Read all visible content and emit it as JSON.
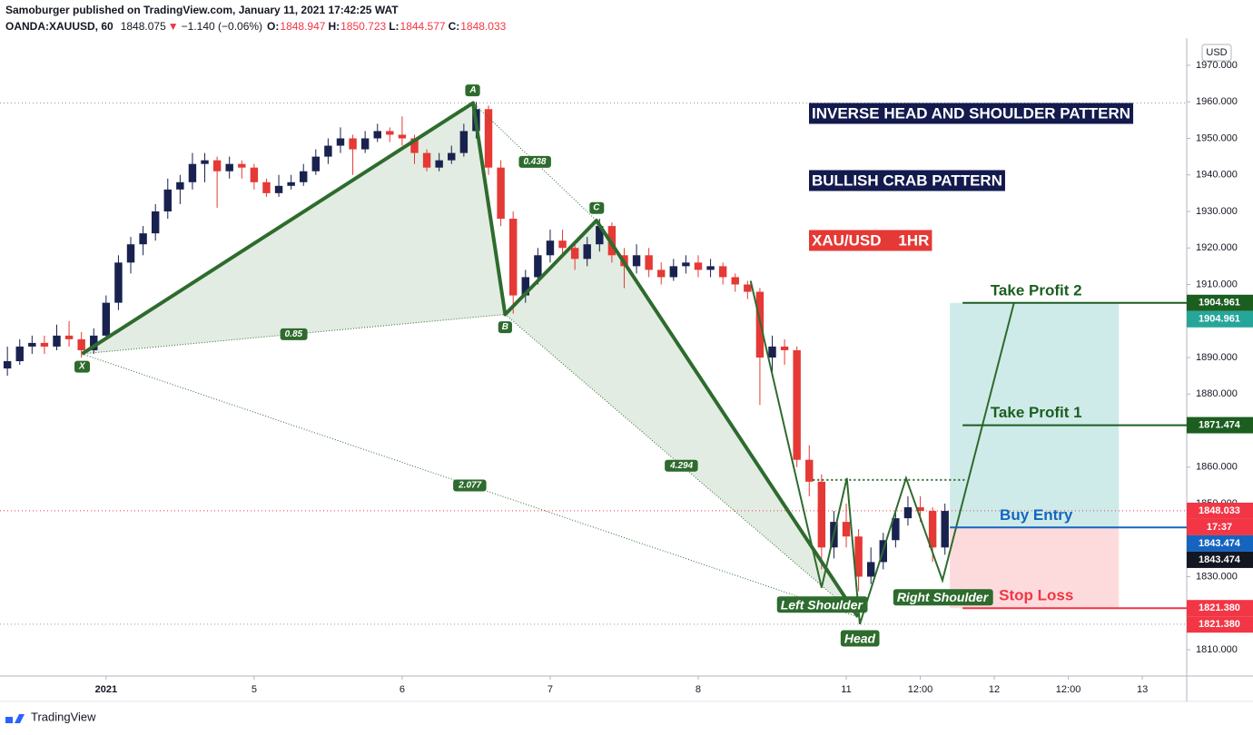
{
  "chart_data": {
    "type": "candlestick",
    "header": {
      "byline": "Samoburger published on TradingView.com, January 11, 2021 17:42:25 WAT",
      "symbol": "OANDA:XAUUSD, 60",
      "last": "1848.075",
      "arrow": "▼",
      "change": "−1.140 (−0.06%)",
      "ohlc": [
        {
          "key": "O:",
          "value": "1848.947"
        },
        {
          "key": "H:",
          "value": "1850.723"
        },
        {
          "key": "L:",
          "value": "1844.577"
        },
        {
          "key": "C:",
          "value": "1848.033"
        }
      ]
    },
    "currency": "USD",
    "up_color": "#19224f",
    "down_color": "#e53935",
    "xlim": [
      -17.2,
      175.2
    ],
    "xticks": [
      {
        "value": 0,
        "label": "2021"
      },
      {
        "value": 24,
        "label": "5"
      },
      {
        "value": 48,
        "label": "6"
      },
      {
        "value": 72,
        "label": "7"
      },
      {
        "value": 96,
        "label": "8"
      },
      {
        "value": 120,
        "label": "11"
      },
      {
        "value": 132,
        "label": "12:00"
      },
      {
        "value": 144,
        "label": "12"
      },
      {
        "value": 156,
        "label": "12:00"
      },
      {
        "value": 168,
        "label": "13"
      }
    ],
    "ylim": [
      1802.8,
      1977.45
    ],
    "yticks": [
      {
        "value": 1810,
        "label": "1810.000"
      },
      {
        "value": 1820,
        "label": "1820.000"
      },
      {
        "value": 1830,
        "label": "1830.000"
      },
      {
        "value": 1840,
        "label": "1840.000"
      },
      {
        "value": 1850,
        "label": "1850.000"
      },
      {
        "value": 1860,
        "label": "1860.000"
      },
      {
        "value": 1870,
        "label": "1870.000"
      },
      {
        "value": 1880,
        "label": "1880.000"
      },
      {
        "value": 1890,
        "label": "1890.000"
      },
      {
        "value": 1900,
        "label": "1900.000"
      },
      {
        "value": 1910,
        "label": "1910.000"
      },
      {
        "value": 1920,
        "label": "1920.000"
      },
      {
        "value": 1930,
        "label": "1930.000"
      },
      {
        "value": 1940,
        "label": "1940.000"
      },
      {
        "value": 1950,
        "label": "1950.000"
      },
      {
        "value": 1960,
        "label": "1960.000"
      },
      {
        "value": 1970,
        "label": "1970.000"
      }
    ],
    "x": [
      -16,
      -14,
      -12,
      -10,
      -8,
      -6,
      -4,
      -2,
      0,
      2,
      4,
      6,
      8,
      10,
      12,
      14,
      16,
      18,
      20,
      22,
      24,
      26,
      28,
      30,
      32,
      34,
      36,
      38,
      40,
      42,
      44,
      46,
      48,
      50,
      52,
      54,
      56,
      58,
      60,
      62,
      64,
      66,
      68,
      70,
      72,
      74,
      76,
      78,
      80,
      82,
      84,
      86,
      88,
      90,
      92,
      94,
      96,
      98,
      100,
      102,
      104,
      106,
      108,
      110,
      112,
      114,
      116,
      118,
      120,
      122,
      124,
      126,
      128,
      130,
      132,
      134,
      136
    ],
    "ohlc": [
      [
        1887,
        1893,
        1885,
        1889
      ],
      [
        1889,
        1895,
        1888,
        1893
      ],
      [
        1893,
        1896,
        1891,
        1894
      ],
      [
        1894,
        1896,
        1891,
        1893
      ],
      [
        1893,
        1899,
        1892,
        1896
      ],
      [
        1896,
        1900,
        1893,
        1895
      ],
      [
        1895,
        1897,
        1890,
        1892
      ],
      [
        1892,
        1898,
        1891,
        1896
      ],
      [
        1896,
        1907,
        1895,
        1905
      ],
      [
        1905,
        1918,
        1903,
        1916
      ],
      [
        1916,
        1923,
        1913,
        1921
      ],
      [
        1921,
        1926,
        1918,
        1924
      ],
      [
        1924,
        1932,
        1922,
        1930
      ],
      [
        1930,
        1939,
        1928,
        1936
      ],
      [
        1936,
        1940,
        1932,
        1938
      ],
      [
        1938,
        1946,
        1936,
        1943
      ],
      [
        1943,
        1946,
        1938,
        1944
      ],
      [
        1944,
        1945,
        1931,
        1941
      ],
      [
        1941,
        1945,
        1939,
        1943
      ],
      [
        1943,
        1944,
        1939,
        1942
      ],
      [
        1942,
        1943,
        1936,
        1938
      ],
      [
        1938,
        1939,
        1934,
        1935
      ],
      [
        1935,
        1940,
        1934,
        1937
      ],
      [
        1937,
        1940,
        1936,
        1938
      ],
      [
        1938,
        1943,
        1937,
        1941
      ],
      [
        1941,
        1947,
        1940,
        1945
      ],
      [
        1945,
        1950,
        1943,
        1948
      ],
      [
        1948,
        1953,
        1946,
        1950
      ],
      [
        1950,
        1951,
        1940,
        1947
      ],
      [
        1947,
        1952,
        1946,
        1950
      ],
      [
        1950,
        1954,
        1949,
        1952
      ],
      [
        1952,
        1953,
        1949,
        1951
      ],
      [
        1951,
        1956,
        1948,
        1950
      ],
      [
        1950,
        1951,
        1943,
        1946
      ],
      [
        1946,
        1947,
        1941,
        1942
      ],
      [
        1942,
        1946,
        1941,
        1944
      ],
      [
        1944,
        1948,
        1943,
        1946
      ],
      [
        1946,
        1954,
        1945,
        1952
      ],
      [
        1952,
        1960,
        1950,
        1958
      ],
      [
        1958,
        1959,
        1940,
        1942
      ],
      [
        1942,
        1944,
        1926,
        1928
      ],
      [
        1928,
        1930,
        1902,
        1907
      ],
      [
        1907,
        1914,
        1905,
        1912
      ],
      [
        1912,
        1920,
        1910,
        1918
      ],
      [
        1918,
        1925,
        1916,
        1922
      ],
      [
        1922,
        1925,
        1918,
        1920
      ],
      [
        1920,
        1922,
        1914,
        1917
      ],
      [
        1917,
        1923,
        1915,
        1921
      ],
      [
        1921,
        1928,
        1919,
        1926
      ],
      [
        1926,
        1927,
        1916,
        1918
      ],
      [
        1918,
        1920,
        1909,
        1915
      ],
      [
        1915,
        1921,
        1913,
        1918
      ],
      [
        1918,
        1920,
        1912,
        1914
      ],
      [
        1914,
        1916,
        1910,
        1912
      ],
      [
        1912,
        1917,
        1911,
        1915
      ],
      [
        1915,
        1918,
        1913,
        1916
      ],
      [
        1916,
        1918,
        1912,
        1914
      ],
      [
        1914,
        1917,
        1912,
        1915
      ],
      [
        1915,
        1916,
        1910,
        1912
      ],
      [
        1912,
        1913,
        1908,
        1910
      ],
      [
        1910,
        1911,
        1906,
        1908
      ],
      [
        1908,
        1909,
        1877,
        1890
      ],
      [
        1890,
        1896,
        1886,
        1893
      ],
      [
        1893,
        1895,
        1888,
        1892
      ],
      [
        1892,
        1893,
        1860,
        1862
      ],
      [
        1862,
        1866,
        1852,
        1856
      ],
      [
        1856,
        1858,
        1832,
        1838
      ],
      [
        1838,
        1848,
        1835,
        1845
      ],
      [
        1845,
        1850,
        1838,
        1841
      ],
      [
        1841,
        1843,
        1826,
        1830
      ],
      [
        1830,
        1838,
        1828,
        1834
      ],
      [
        1834,
        1842,
        1832,
        1840
      ],
      [
        1840,
        1848,
        1838,
        1846
      ],
      [
        1846,
        1852,
        1844,
        1849
      ],
      [
        1849,
        1852,
        1845,
        1848
      ],
      [
        1848,
        1849,
        1834,
        1838
      ],
      [
        1838,
        1850,
        1836,
        1848
      ]
    ],
    "harmonic": {
      "color": "#2e6b2e",
      "fill": "#dfeadf",
      "points": [
        {
          "label": "X",
          "x": -3.9,
          "y": 1891
        },
        {
          "label": "A",
          "x": 59.5,
          "y": 1959.7
        },
        {
          "label": "B",
          "x": 64.7,
          "y": 1901.8
        },
        {
          "label": "C",
          "x": 79.5,
          "y": 1927.5
        },
        {
          "x": 121.9,
          "y": 1819
        }
      ],
      "ratios": [
        {
          "label": "0.85",
          "from": 0,
          "to": 2
        },
        {
          "label": "0.438",
          "from": 1,
          "to": 3
        },
        {
          "label": "2.077",
          "from": 0,
          "to": 4
        },
        {
          "label": "4.294",
          "from": 2,
          "to": 4
        }
      ]
    },
    "head_shoulders": {
      "color": "#2e6b2e",
      "points": [
        {
          "x": 104.5,
          "y": 1911
        },
        {
          "x": 116,
          "y": 1827
        },
        {
          "x": 120.1,
          "y": 1857
        },
        {
          "x": 122.2,
          "y": 1817
        },
        {
          "x": 129.7,
          "y": 1857
        },
        {
          "x": 135.6,
          "y": 1829
        },
        {
          "x": 147.2,
          "y": 1905
        }
      ],
      "labels": [
        {
          "text": "Left Shoulder",
          "point": 1
        },
        {
          "text": "Head",
          "point": 3
        },
        {
          "text": "Right Shoulder",
          "point": 5
        }
      ],
      "neckline": {
        "y": 1856.5,
        "x": [
          114.6,
          139.6
        ]
      }
    },
    "position": {
      "x": [
        136.8,
        164.2
      ]
    },
    "levels": [
      {
        "name": "Take Profit 2",
        "value": 1904.961,
        "color": "#1b5e20"
      },
      {
        "name": "Take Profit 1",
        "value": 1871.474,
        "color": "#1b5e20"
      },
      {
        "name": "Buy Entry",
        "value": 1843.474,
        "color": "#1565c0"
      },
      {
        "name": "Stop Loss",
        "value": 1821.38,
        "color": "#f23645"
      }
    ],
    "tags": [
      {
        "value": 1904.961,
        "label": "1904.961",
        "color": "#1b5e20"
      },
      {
        "value": 1904.961,
        "label": "1904.961",
        "color": "#26a69a"
      },
      {
        "value": 1871.474,
        "label": "1871.474",
        "color": "#1b5e20"
      },
      {
        "value": 1848.033,
        "label": "1848.033",
        "color": "#f23645"
      },
      {
        "value": 1848.033,
        "label": "17:37",
        "color": "#f23645"
      },
      {
        "value": 1843.474,
        "label": "1843.474",
        "color": "#1565c0"
      },
      {
        "value": 1843.474,
        "label": "1843.474",
        "color": "#131722"
      },
      {
        "value": 1821.38,
        "label": "1821.380",
        "color": "#f23645"
      },
      {
        "value": 1821.38,
        "label": "1821.380",
        "color": "#f23645"
      }
    ],
    "notes": [
      {
        "text": "INVERSE HEAD AND SHOULDER PATTERN",
        "bg": "#131a4d"
      },
      {
        "text": "BULLISH CRAB PATTERN",
        "bg": "#131a4d"
      },
      {
        "text": "XAU/USD    1HR",
        "bg": "#e53935"
      }
    ],
    "brand": "TradingView"
  }
}
